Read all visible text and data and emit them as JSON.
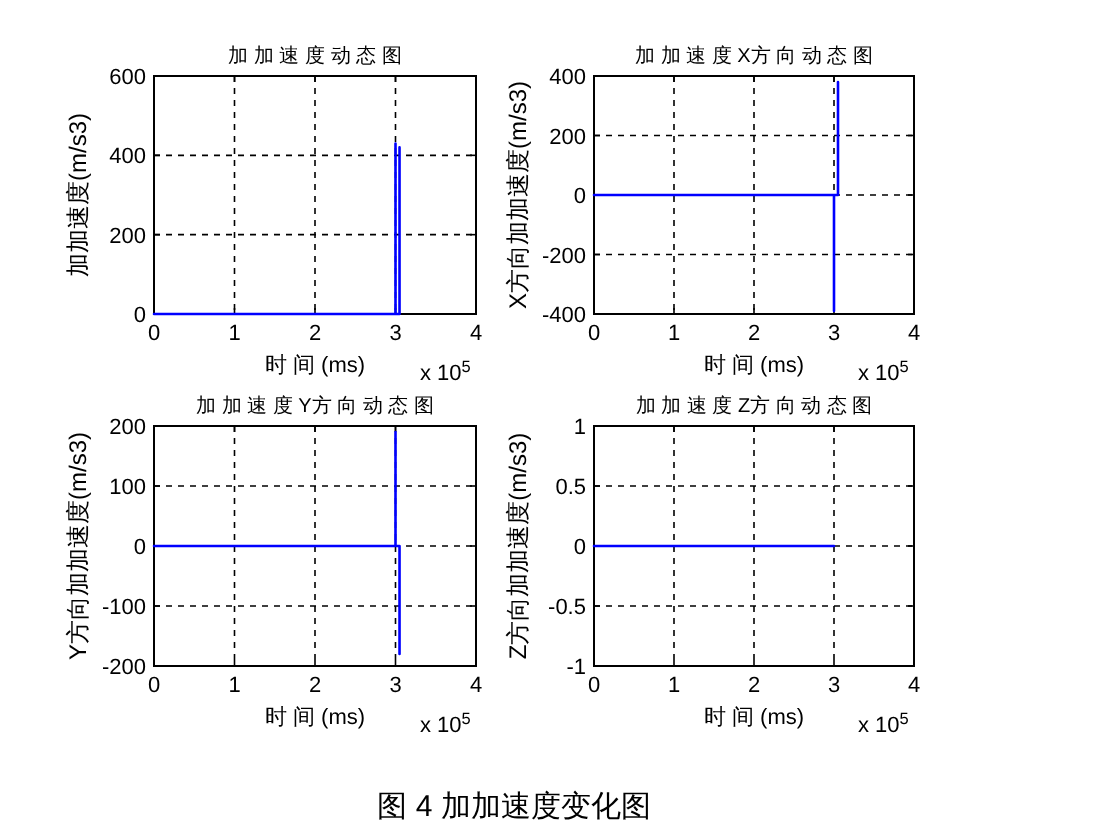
{
  "chart_data": [
    {
      "type": "line",
      "title": "加 加 速 度 动 态 图",
      "xlabel": "时 间 (ms)",
      "ylabel": "加加速度(m/s3)",
      "xlim": [
        0,
        4
      ],
      "ylim": [
        0,
        600
      ],
      "xticks": [
        0,
        1,
        2,
        3,
        4
      ],
      "yticks": [
        0,
        200,
        400,
        600
      ],
      "grid": true,
      "annotations": [
        "x 10$^{5}$"
      ],
      "series": [
        {
          "color": "#0000ff",
          "x": [
            0,
            3.0,
            3.0,
            3.0,
            3.05,
            3.05,
            3.05
          ],
          "values": [
            0,
            0,
            430,
            0,
            0,
            420,
            0
          ]
        }
      ]
    },
    {
      "type": "line",
      "title": "加 加 速 度 X方 向 动 态 图",
      "xlabel": "时 间 (ms)",
      "ylabel": "X方向加加速度(m/s3)",
      "xlim": [
        0,
        4
      ],
      "ylim": [
        -400,
        400
      ],
      "xticks": [
        0,
        1,
        2,
        3,
        4
      ],
      "yticks": [
        -400,
        -200,
        0,
        200,
        400
      ],
      "grid": true,
      "annotations": [
        "x 10$^{5}$"
      ],
      "series": [
        {
          "color": "#0000ff",
          "x": [
            0,
            3.0,
            3.0,
            3.0,
            3.05,
            3.05
          ],
          "values": [
            0,
            0,
            -390,
            0,
            0,
            380
          ]
        }
      ]
    },
    {
      "type": "line",
      "title": "加 加 速 度 Y方 向 动 态 图",
      "xlabel": "时 间 (ms)",
      "ylabel": "Y方向加加速度(m/s3)",
      "xlim": [
        0,
        4
      ],
      "ylim": [
        -200,
        200
      ],
      "xticks": [
        0,
        1,
        2,
        3,
        4
      ],
      "yticks": [
        -200,
        -100,
        0,
        100,
        200
      ],
      "grid": true,
      "annotations": [
        "x 10$^{5}$"
      ],
      "series": [
        {
          "color": "#0000ff",
          "x": [
            0,
            3.0,
            3.0,
            3.0,
            3.05,
            3.05
          ],
          "values": [
            0,
            0,
            190,
            0,
            0,
            -180
          ]
        }
      ]
    },
    {
      "type": "line",
      "title": "加 加 速 度 Z方 向 动 态 图",
      "xlabel": "时 间 (ms)",
      "ylabel": "Z方向加加速度(m/s3)",
      "xlim": [
        0,
        4
      ],
      "ylim": [
        -1,
        1
      ],
      "xticks": [
        0,
        1,
        2,
        3,
        4
      ],
      "yticks": [
        -1,
        -0.5,
        0,
        0.5,
        1
      ],
      "grid": true,
      "annotations": [
        "x 10$^{5}$",
        "图 4  加加速度变化图"
      ],
      "series": [
        {
          "color": "#0000ff",
          "x": [
            0,
            3.0
          ],
          "values": [
            0,
            0
          ]
        }
      ]
    }
  ]
}
